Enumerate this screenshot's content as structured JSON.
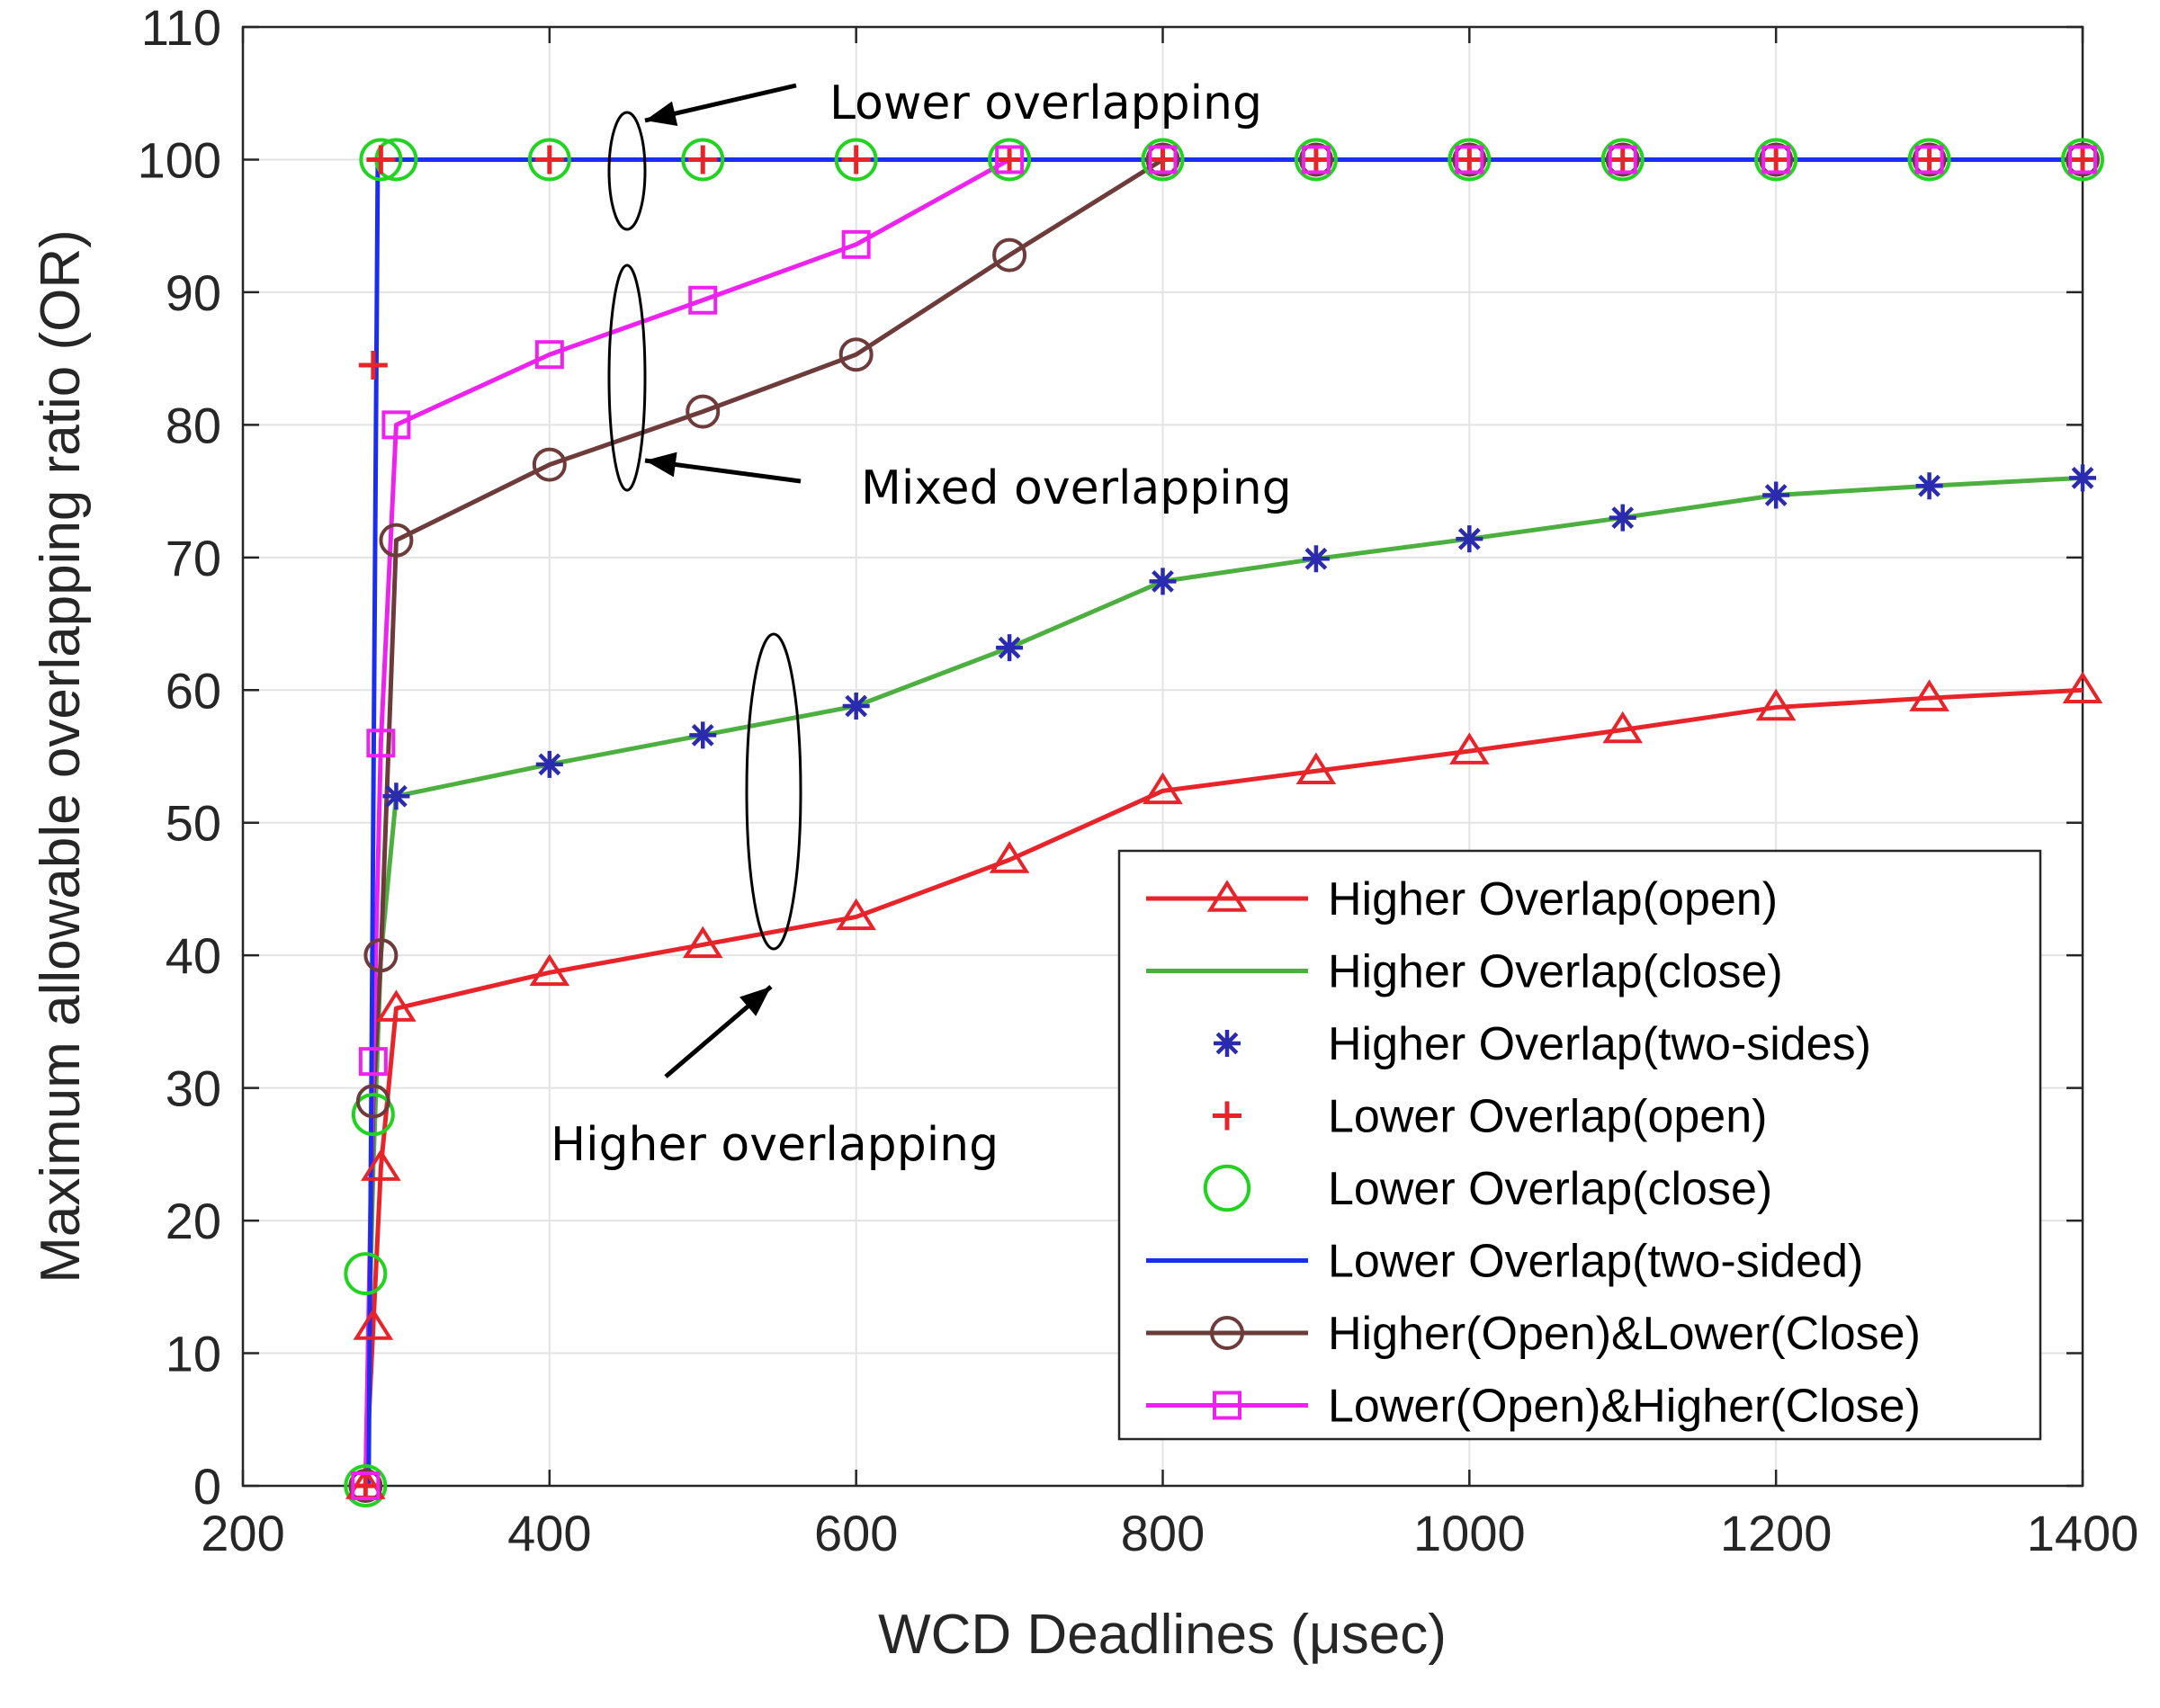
{
  "chart_data": {
    "type": "line",
    "title": "",
    "xlabel": "WCD Deadlines (μsec)",
    "ylabel": "Maximum allowable overlapping ratio (OR)",
    "xlim": [
      200,
      1400
    ],
    "ylim": [
      0,
      110
    ],
    "grid": true,
    "legend_position": "bottom-right",
    "xticks": [
      200,
      400,
      600,
      800,
      1000,
      1200,
      1400
    ],
    "yticks": [
      0,
      10,
      20,
      30,
      40,
      50,
      60,
      70,
      80,
      90,
      100,
      110
    ],
    "series": [
      {
        "name": "Higher Overlap(open)",
        "color": "#e8242b",
        "line": true,
        "marker": "triangle",
        "x": [
          280,
          285,
          290,
          300,
          400,
          500,
          600,
          700,
          800,
          900,
          1000,
          1100,
          1200,
          1300,
          1400
        ],
        "y": [
          0,
          12,
          24,
          36,
          38.7,
          40.8,
          42.9,
          47.2,
          52.4,
          53.9,
          55.4,
          57.0,
          58.7,
          59.4,
          60.0
        ]
      },
      {
        "name": "Higher Overlap(close)",
        "color": "#4caf3f",
        "line": true,
        "marker": "none",
        "x": [
          280,
          285,
          290,
          300,
          400,
          500,
          600,
          700,
          800,
          900,
          1000,
          1100,
          1200,
          1300,
          1400
        ],
        "y": [
          0,
          24,
          40,
          52,
          54.4,
          56.6,
          58.8,
          63.2,
          68.2,
          69.9,
          71.4,
          73.0,
          74.7,
          75.4,
          76.0
        ]
      },
      {
        "name": "Higher Overlap(two-sides)",
        "color": "#2b2bb0",
        "line": false,
        "marker": "star",
        "x": [
          300,
          400,
          500,
          600,
          700,
          800,
          900,
          1000,
          1100,
          1200,
          1300,
          1400
        ],
        "y": [
          52,
          54.4,
          56.6,
          58.8,
          63.2,
          68.2,
          69.9,
          71.4,
          73.0,
          74.7,
          75.4,
          76.0
        ]
      },
      {
        "name": "Lower Overlap(open)",
        "color": "#e8242b",
        "line": false,
        "marker": "plus",
        "x": [
          280,
          285,
          290,
          400,
          500,
          600,
          700,
          800,
          900,
          1000,
          1100,
          1200,
          1300,
          1400
        ],
        "y": [
          0,
          84.5,
          100,
          100,
          100,
          100,
          100,
          100,
          100,
          100,
          100,
          100,
          100,
          100
        ]
      },
      {
        "name": "Lower Overlap(close)",
        "color": "#22d322",
        "line": false,
        "marker": "circle",
        "x": [
          280,
          280,
          285,
          290,
          300,
          400,
          500,
          600,
          700,
          800,
          900,
          1000,
          1100,
          1200,
          1300,
          1400
        ],
        "y": [
          0,
          16,
          28,
          100,
          100,
          100,
          100,
          100,
          100,
          100,
          100,
          100,
          100,
          100,
          100,
          100
        ]
      },
      {
        "name": "Lower Overlap(two-sided)",
        "color": "#1a2ef2",
        "line": true,
        "marker": "none",
        "x": [
          282,
          288,
          400,
          500,
          600,
          700,
          800,
          900,
          1000,
          1100,
          1200,
          1300,
          1400
        ],
        "y": [
          0,
          100,
          100,
          100,
          100,
          100,
          100,
          100,
          100,
          100,
          100,
          100,
          100
        ]
      },
      {
        "name": "Higher(Open)&Lower(Close)",
        "color": "#6e3b3b",
        "line": true,
        "marker": "circle-small",
        "x": [
          280,
          285,
          290,
          300,
          400,
          500,
          600,
          700,
          800,
          900,
          1000,
          1100,
          1200,
          1300,
          1400
        ],
        "y": [
          0,
          29,
          40,
          71.3,
          77.0,
          81.0,
          85.3,
          92.8,
          100,
          100,
          100,
          100,
          100,
          100,
          100
        ]
      },
      {
        "name": "Lower(Open)&Higher(Close)",
        "color": "#ee22ee",
        "line": true,
        "marker": "square",
        "x": [
          280,
          285,
          290,
          300,
          400,
          500,
          600,
          700,
          800,
          900,
          1000,
          1100,
          1200,
          1300,
          1400
        ],
        "y": [
          0,
          32,
          56,
          80,
          85.3,
          89.4,
          93.6,
          100,
          100,
          100,
          100,
          100,
          100,
          100,
          100
        ]
      }
    ],
    "annotations": [
      {
        "text": "Lower overlapping",
        "target": "lower overlap group at OR 100, x 400-600"
      },
      {
        "text": "Mixed overlapping",
        "target": "mixed overlap group, x 400-500"
      },
      {
        "text": "Higher overlapping",
        "target": "higher overlap group, x 500-600"
      }
    ]
  }
}
